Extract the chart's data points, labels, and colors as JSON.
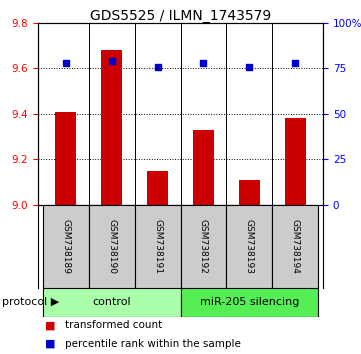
{
  "title": "GDS5525 / ILMN_1743579",
  "samples": [
    "GSM738189",
    "GSM738190",
    "GSM738191",
    "GSM738192",
    "GSM738193",
    "GSM738194"
  ],
  "bar_values": [
    9.41,
    9.68,
    9.15,
    9.33,
    9.11,
    9.38
  ],
  "bar_bottom": 9.0,
  "percentile_values": [
    78,
    79,
    76,
    78,
    76,
    78
  ],
  "ylim_left": [
    9.0,
    9.8
  ],
  "ylim_right": [
    0,
    100
  ],
  "yticks_left": [
    9.0,
    9.2,
    9.4,
    9.6,
    9.8
  ],
  "yticks_right": [
    0,
    25,
    50,
    75,
    100
  ],
  "ytick_labels_right": [
    "0",
    "25",
    "50",
    "75",
    "100%"
  ],
  "bar_color": "#cc0000",
  "dot_color": "#0000cc",
  "control_label": "control",
  "treatment_label": "miR-205 silencing",
  "control_color": "#aaffaa",
  "treatment_color": "#55ee55",
  "protocol_label": "protocol",
  "legend_bar_label": "transformed count",
  "legend_dot_label": "percentile rank within the sample",
  "xlabel_bg_color": "#cccccc",
  "title_fontsize": 10,
  "tick_fontsize": 7.5,
  "sample_fontsize": 6.5
}
